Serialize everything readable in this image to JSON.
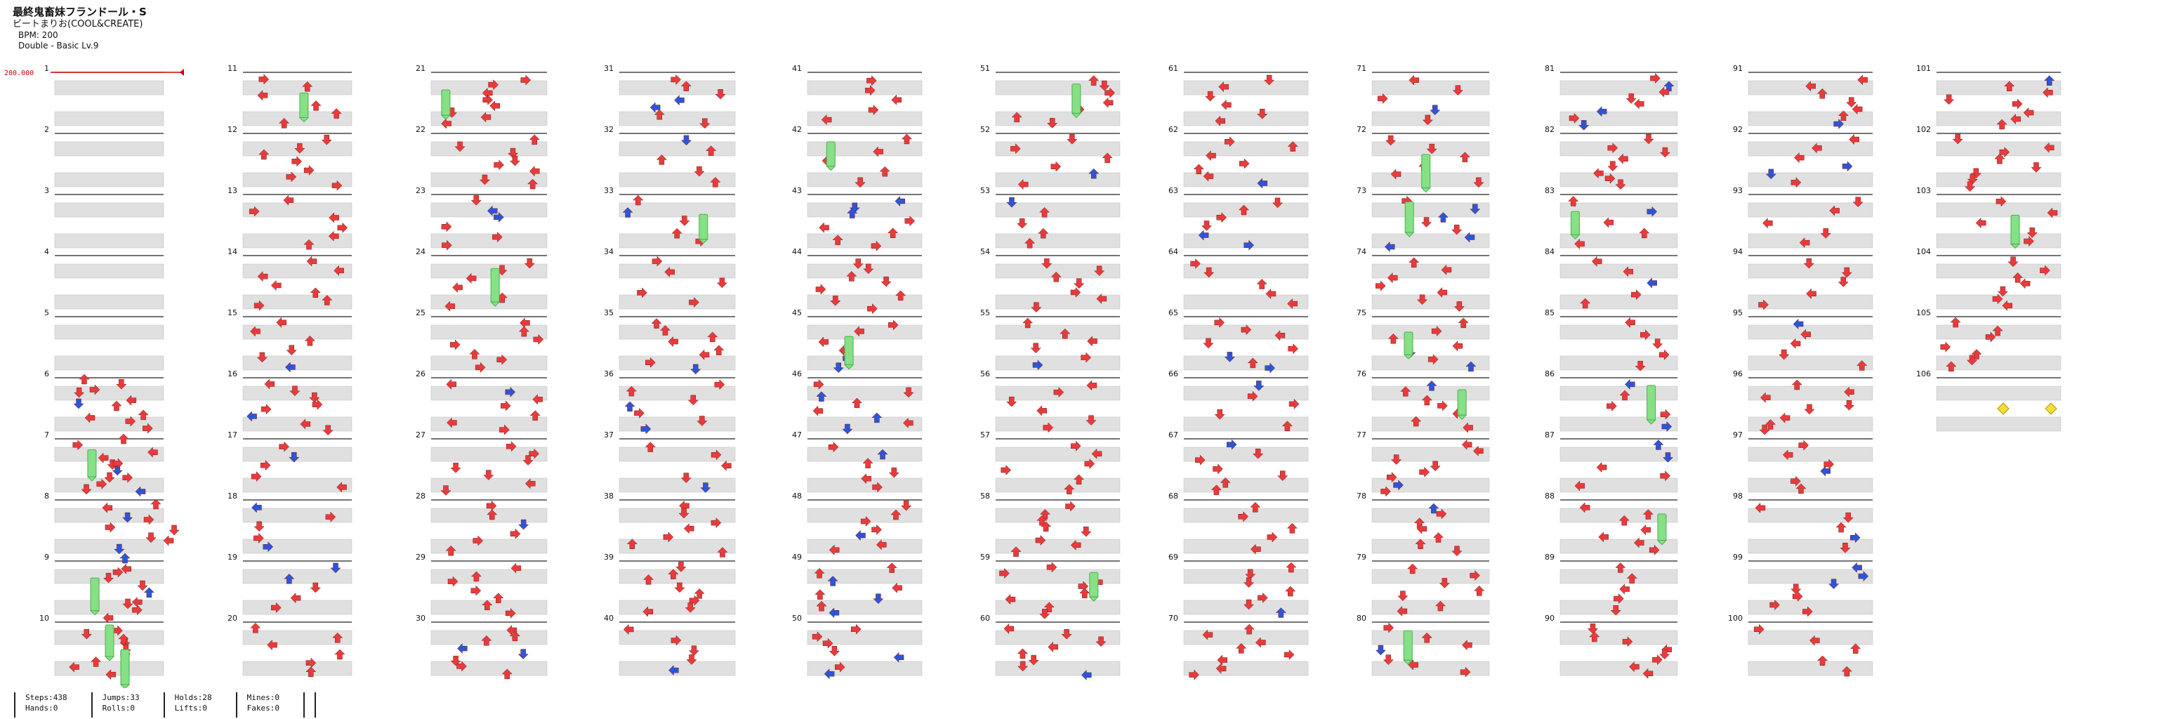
{
  "song": {
    "title": "最終鬼畜妹フランドール・S",
    "artist": "ビートまりお(COOL&CREATE)",
    "bpm": "BPM: 200",
    "difficulty": "Double - Basic  Lv.9",
    "bpm_marker": "200.000"
  },
  "colors": {
    "up_arrow": "#e83b3b",
    "down_arrow": "#2d55d8",
    "hold": "#86e086",
    "mine": "#f2dd3a",
    "stripe": "#e0e0e0",
    "measure_line": "#222222",
    "bpm_line": "#cc0000"
  },
  "chart_data": {
    "type": "table",
    "note_icons": [
      "red-arrow-icon",
      "blue-arrow-icon",
      "hold-note-icon",
      "mine-icon"
    ],
    "measures_total": 106,
    "columns": [
      {
        "measures": [
          1,
          2,
          3,
          4,
          5,
          6,
          7,
          8,
          9,
          10
        ]
      },
      {
        "measures": [
          11,
          12,
          13,
          14,
          15,
          16,
          17,
          18,
          19,
          20
        ]
      },
      {
        "measures": [
          21,
          22,
          23,
          24,
          25,
          26,
          27,
          28,
          29,
          30
        ]
      },
      {
        "measures": [
          31,
          32,
          33,
          34,
          35,
          36,
          37,
          38,
          39,
          40
        ]
      },
      {
        "measures": [
          41,
          42,
          43,
          44,
          45,
          46,
          47,
          48,
          49,
          50
        ]
      },
      {
        "measures": [
          51,
          52,
          53,
          54,
          55,
          56,
          57,
          58,
          59,
          60
        ]
      },
      {
        "measures": [
          61,
          62,
          63,
          64,
          65,
          66,
          67,
          68,
          69,
          70
        ]
      },
      {
        "measures": [
          71,
          72,
          73,
          74,
          75,
          76,
          77,
          78,
          79,
          80
        ]
      },
      {
        "measures": [
          81,
          82,
          83,
          84,
          85,
          86,
          87,
          88,
          89,
          90
        ]
      },
      {
        "measures": [
          91,
          92,
          93,
          94,
          95,
          96,
          97,
          98,
          99,
          100
        ]
      },
      {
        "measures": [
          101,
          102,
          103,
          104,
          105,
          106
        ]
      }
    ]
  },
  "stats": [
    {
      "line1": "Steps:438",
      "line2": "Hands:0"
    },
    {
      "line1": "Jumps:33",
      "line2": "Rolls:0"
    },
    {
      "line1": "Holds:28",
      "line2": "Lifts:0"
    },
    {
      "line1": "Mines:0",
      "line2": "Fakes:0"
    }
  ]
}
